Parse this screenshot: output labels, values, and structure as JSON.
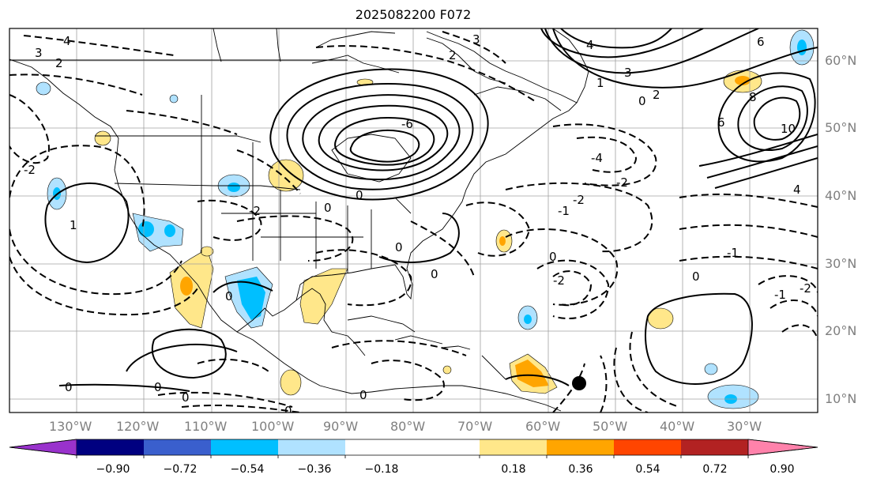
{
  "title": "2025082200 F072",
  "lon_labels": [
    "130°W",
    "120°W",
    "110°W",
    "100°W",
    "90°W",
    "80°W",
    "70°W",
    "60°W",
    "50°W",
    "40°W",
    "30°W"
  ],
  "lat_labels": [
    "60°N",
    "50°N",
    "40°N",
    "30°N",
    "20°N",
    "10°N"
  ],
  "colorbar": {
    "ticks": [
      "−0.90",
      "−0.72",
      "−0.54",
      "−0.36",
      "−0.18",
      "0.18",
      "0.36",
      "0.54",
      "0.72",
      "0.90"
    ],
    "colors": [
      "#9932cc",
      "#000080",
      "#3a5fcd",
      "#00bfff",
      "#b0e2ff",
      "#ffffff",
      "#ffe78a",
      "#ffa500",
      "#ff4500",
      "#b22222",
      "#ff82ab"
    ]
  },
  "contour_labels": [
    "3",
    "2",
    "4",
    "1",
    "0",
    "-2",
    "-4",
    "-6",
    "6",
    "8",
    "10",
    "-1"
  ],
  "marker": "storm-center"
}
